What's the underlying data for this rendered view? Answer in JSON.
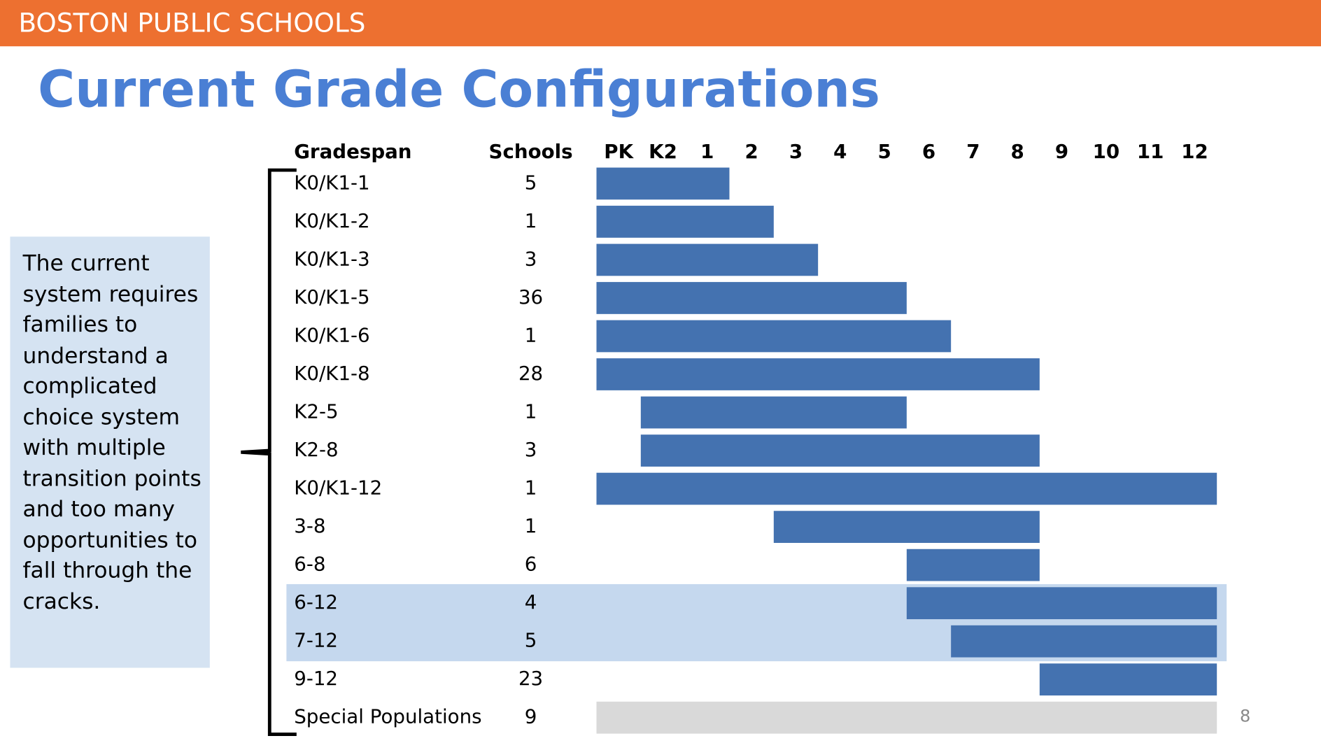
{
  "header": {
    "title": "BOSTON PUBLIC SCHOOLS"
  },
  "title": "Current Grade Configurations",
  "sidebar": {
    "text": "The current system requires families to understand a complicated choice system with multiple transition points and too many opportunities to fall through the cracks."
  },
  "table": {
    "columns": [
      "Gradespan",
      "Schools"
    ],
    "grades": [
      "PK",
      "K2",
      "1",
      "2",
      "3",
      "4",
      "5",
      "6",
      "7",
      "8",
      "9",
      "10",
      "11",
      "12"
    ],
    "bar_color": "#4472b0",
    "highlight_color": "#c5d8ee",
    "rows": [
      {
        "gradespan": "K0/K1-1",
        "schools": 5,
        "from": "PK",
        "to": "1"
      },
      {
        "gradespan": "K0/K1-2",
        "schools": 1,
        "from": "PK",
        "to": "2"
      },
      {
        "gradespan": "K0/K1-3",
        "schools": 3,
        "from": "PK",
        "to": "3"
      },
      {
        "gradespan": "K0/K1-5",
        "schools": 36,
        "from": "PK",
        "to": "5"
      },
      {
        "gradespan": "K0/K1-6",
        "schools": 1,
        "from": "PK",
        "to": "6"
      },
      {
        "gradespan": "K0/K1-8",
        "schools": 28,
        "from": "PK",
        "to": "8"
      },
      {
        "gradespan": "K2-5",
        "schools": 1,
        "from": "K2",
        "to": "5"
      },
      {
        "gradespan": "K2-8",
        "schools": 3,
        "from": "K2",
        "to": "8"
      },
      {
        "gradespan": "K0/K1-12",
        "schools": 1,
        "from": "PK",
        "to": "12"
      },
      {
        "gradespan": "3-8",
        "schools": 1,
        "from": "3",
        "to": "8"
      },
      {
        "gradespan": "6-8",
        "schools": 6,
        "from": "6",
        "to": "8"
      },
      {
        "gradespan": "6-12",
        "schools": 4,
        "from": "6",
        "to": "12",
        "highlight": true
      },
      {
        "gradespan": "7-12",
        "schools": 5,
        "from": "7",
        "to": "12",
        "highlight": true
      },
      {
        "gradespan": "9-12",
        "schools": 23,
        "from": "9",
        "to": "12"
      },
      {
        "gradespan": "Special Populations",
        "schools": 9,
        "from": "PK",
        "to": "12",
        "color": "#d9d9d9"
      }
    ]
  },
  "page_number": "8"
}
